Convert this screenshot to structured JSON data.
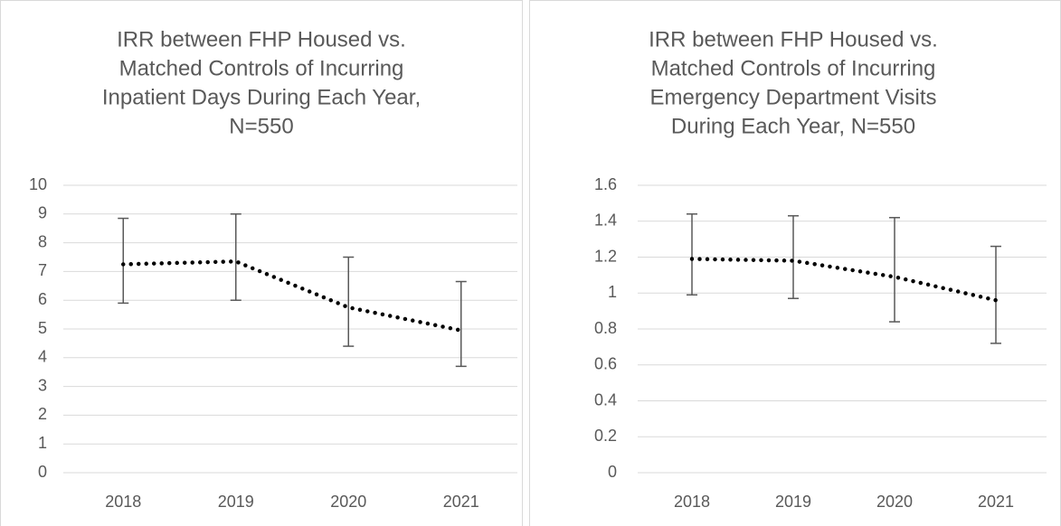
{
  "chart_data": [
    {
      "type": "line",
      "title": [
        "IRR between FHP Housed vs.",
        "Matched Controls of Incurring",
        "Inpatient Days During Each Year,",
        "N=550"
      ],
      "categories": [
        "2018",
        "2019",
        "2020",
        "2021"
      ],
      "values": [
        7.25,
        7.35,
        5.75,
        4.95
      ],
      "lower": [
        5.9,
        6.0,
        4.4,
        3.7
      ],
      "upper": [
        8.85,
        9.0,
        7.5,
        6.65
      ],
      "color": "#000000",
      "ylim": [
        0,
        10
      ],
      "yticks": [
        0,
        1,
        2,
        3,
        4,
        5,
        6,
        7,
        8,
        9,
        10
      ],
      "grid": true
    },
    {
      "type": "line",
      "title": [
        "IRR between FHP Housed vs.",
        "Matched Controls of Incurring",
        "Emergency Department Visits",
        "During Each Year, N=550"
      ],
      "categories": [
        "2018",
        "2019",
        "2020",
        "2021"
      ],
      "values": [
        1.19,
        1.18,
        1.09,
        0.96
      ],
      "lower": [
        0.99,
        0.97,
        0.84,
        0.72
      ],
      "upper": [
        1.44,
        1.43,
        1.42,
        1.26
      ],
      "color": "#000000",
      "ylim": [
        0,
        1.6
      ],
      "yticks": [
        0,
        0.2,
        0.4,
        0.6,
        0.8,
        1,
        1.2,
        1.4,
        1.6
      ],
      "grid": true
    }
  ]
}
